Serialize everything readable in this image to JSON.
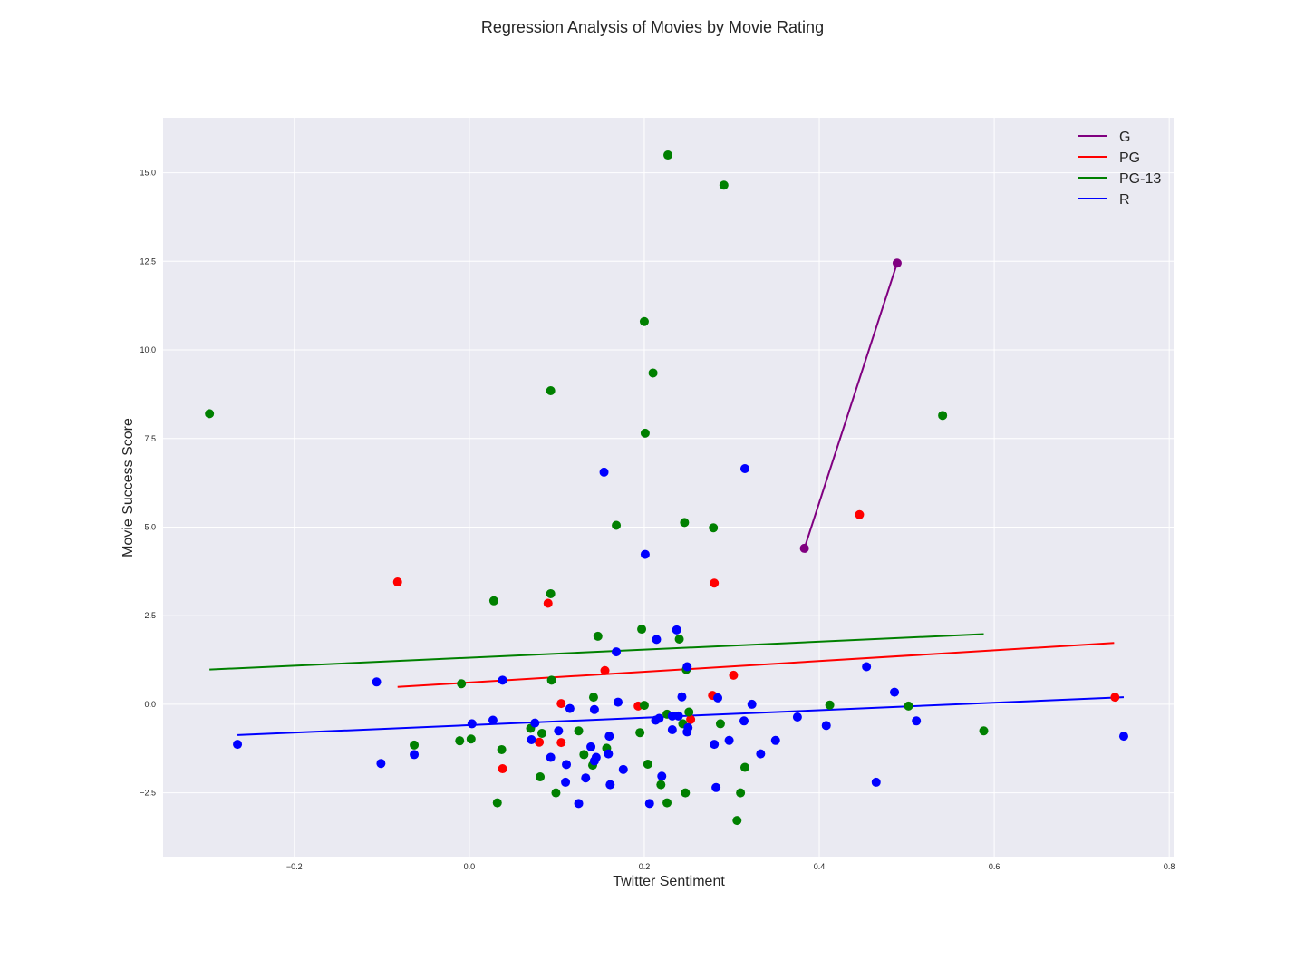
{
  "chart_data": {
    "type": "scatter",
    "title": "Regression Analysis of Movies by Movie Rating",
    "xlabel": "Twitter Sentiment",
    "ylabel": "Movie Success Score",
    "xlim": [
      -0.35,
      0.805
    ],
    "ylim": [
      -4.3,
      16.55
    ],
    "xticks": [
      -0.2,
      0.0,
      0.2,
      0.4,
      0.6,
      0.8
    ],
    "xtick_labels": [
      "−0.2",
      "0.0",
      "0.2",
      "0.4",
      "0.6",
      "0.8"
    ],
    "yticks": [
      -2.5,
      0.0,
      2.5,
      5.0,
      7.5,
      10.0,
      12.5,
      15.0
    ],
    "ytick_labels": [
      "−2.5",
      "0.0",
      "2.5",
      "5.0",
      "7.5",
      "10.0",
      "12.5",
      "15.0"
    ],
    "grid": true,
    "legend_position": "top-right",
    "background": "#eaeaf2",
    "series": [
      {
        "name": "G",
        "color": "#800080",
        "points": [
          [
            0.383,
            4.4
          ],
          [
            0.489,
            12.45
          ]
        ],
        "fit": [
          [
            0.383,
            4.4
          ],
          [
            0.489,
            12.45
          ]
        ]
      },
      {
        "name": "PG",
        "color": "#ff0000",
        "points": [
          [
            -0.082,
            3.45
          ],
          [
            0.09,
            2.85
          ],
          [
            0.105,
            0.02
          ],
          [
            0.155,
            0.95
          ],
          [
            0.193,
            -0.05
          ],
          [
            0.278,
            0.25
          ],
          [
            0.302,
            0.82
          ],
          [
            0.28,
            3.42
          ],
          [
            0.446,
            5.35
          ],
          [
            0.08,
            -1.07
          ],
          [
            0.105,
            -1.08
          ],
          [
            0.038,
            -1.82
          ],
          [
            0.253,
            -0.43
          ],
          [
            0.738,
            0.2
          ]
        ],
        "fit": [
          [
            -0.082,
            0.49
          ],
          [
            0.737,
            1.73
          ]
        ]
      },
      {
        "name": "PG-13",
        "color": "#008000",
        "points": [
          [
            -0.297,
            8.2
          ],
          [
            0.093,
            8.85
          ],
          [
            0.2,
            10.8
          ],
          [
            0.21,
            9.35
          ],
          [
            0.227,
            15.5
          ],
          [
            0.291,
            14.65
          ],
          [
            0.201,
            7.65
          ],
          [
            0.541,
            8.15
          ],
          [
            0.168,
            5.05
          ],
          [
            0.246,
            5.13
          ],
          [
            0.279,
            4.98
          ],
          [
            0.028,
            2.92
          ],
          [
            0.093,
            3.12
          ],
          [
            0.147,
            1.92
          ],
          [
            0.197,
            2.12
          ],
          [
            0.24,
            1.84
          ],
          [
            0.248,
            0.98
          ],
          [
            0.094,
            0.68
          ],
          [
            -0.009,
            0.58
          ],
          [
            0.142,
            0.2
          ],
          [
            0.2,
            -0.03
          ],
          [
            0.226,
            -0.28
          ],
          [
            0.251,
            -0.22
          ],
          [
            0.244,
            -0.55
          ],
          [
            0.287,
            -0.55
          ],
          [
            0.412,
            -0.02
          ],
          [
            0.502,
            -0.05
          ],
          [
            0.588,
            -0.75
          ],
          [
            0.07,
            -0.68
          ],
          [
            0.083,
            -0.82
          ],
          [
            0.125,
            -0.75
          ],
          [
            0.195,
            -0.8
          ],
          [
            -0.063,
            -1.15
          ],
          [
            -0.011,
            -1.03
          ],
          [
            0.002,
            -0.98
          ],
          [
            0.037,
            -1.28
          ],
          [
            0.131,
            -1.42
          ],
          [
            0.141,
            -1.72
          ],
          [
            0.157,
            -1.24
          ],
          [
            0.204,
            -1.69
          ],
          [
            0.315,
            -1.78
          ],
          [
            0.081,
            -2.05
          ],
          [
            0.099,
            -2.5
          ],
          [
            0.219,
            -2.27
          ],
          [
            0.247,
            -2.5
          ],
          [
            0.31,
            -2.5
          ],
          [
            0.032,
            -2.78
          ],
          [
            0.226,
            -2.78
          ],
          [
            0.306,
            -3.28
          ]
        ],
        "fit": [
          [
            -0.297,
            0.98
          ],
          [
            0.588,
            1.98
          ]
        ]
      },
      {
        "name": "R",
        "color": "#0000ff",
        "points": [
          [
            0.154,
            6.55
          ],
          [
            0.315,
            6.65
          ],
          [
            0.201,
            4.23
          ],
          [
            0.237,
            2.1
          ],
          [
            0.214,
            1.83
          ],
          [
            0.168,
            1.48
          ],
          [
            0.249,
            1.06
          ],
          [
            0.454,
            1.06
          ],
          [
            -0.106,
            0.63
          ],
          [
            0.038,
            0.68
          ],
          [
            0.243,
            0.21
          ],
          [
            0.284,
            0.18
          ],
          [
            0.17,
            0.06
          ],
          [
            0.323,
            0.0
          ],
          [
            0.486,
            0.34
          ],
          [
            0.115,
            -0.12
          ],
          [
            0.143,
            -0.15
          ],
          [
            0.375,
            -0.36
          ],
          [
            0.027,
            -0.45
          ],
          [
            0.003,
            -0.55
          ],
          [
            0.075,
            -0.53
          ],
          [
            0.213,
            -0.45
          ],
          [
            0.217,
            -0.4
          ],
          [
            0.232,
            -0.33
          ],
          [
            0.239,
            -0.33
          ],
          [
            0.25,
            -0.66
          ],
          [
            0.249,
            -0.78
          ],
          [
            0.232,
            -0.72
          ],
          [
            0.314,
            -0.47
          ],
          [
            0.408,
            -0.6
          ],
          [
            0.511,
            -0.47
          ],
          [
            -0.265,
            -1.13
          ],
          [
            0.102,
            -0.75
          ],
          [
            0.071,
            -1.0
          ],
          [
            0.16,
            -0.9
          ],
          [
            0.297,
            -1.02
          ],
          [
            0.28,
            -1.13
          ],
          [
            0.35,
            -1.02
          ],
          [
            -0.063,
            -1.42
          ],
          [
            0.139,
            -1.2
          ],
          [
            0.145,
            -1.5
          ],
          [
            0.159,
            -1.4
          ],
          [
            0.093,
            -1.5
          ],
          [
            0.111,
            -1.7
          ],
          [
            0.143,
            -1.6
          ],
          [
            0.176,
            -1.84
          ],
          [
            0.333,
            -1.4
          ],
          [
            -0.101,
            -1.67
          ],
          [
            0.22,
            -2.03
          ],
          [
            0.133,
            -2.08
          ],
          [
            0.11,
            -2.2
          ],
          [
            0.161,
            -2.27
          ],
          [
            0.282,
            -2.35
          ],
          [
            0.465,
            -2.2
          ],
          [
            0.125,
            -2.8
          ],
          [
            0.206,
            -2.8
          ],
          [
            0.748,
            -0.9
          ]
        ],
        "fit": [
          [
            -0.265,
            -0.87
          ],
          [
            0.748,
            0.2
          ]
        ]
      }
    ]
  }
}
